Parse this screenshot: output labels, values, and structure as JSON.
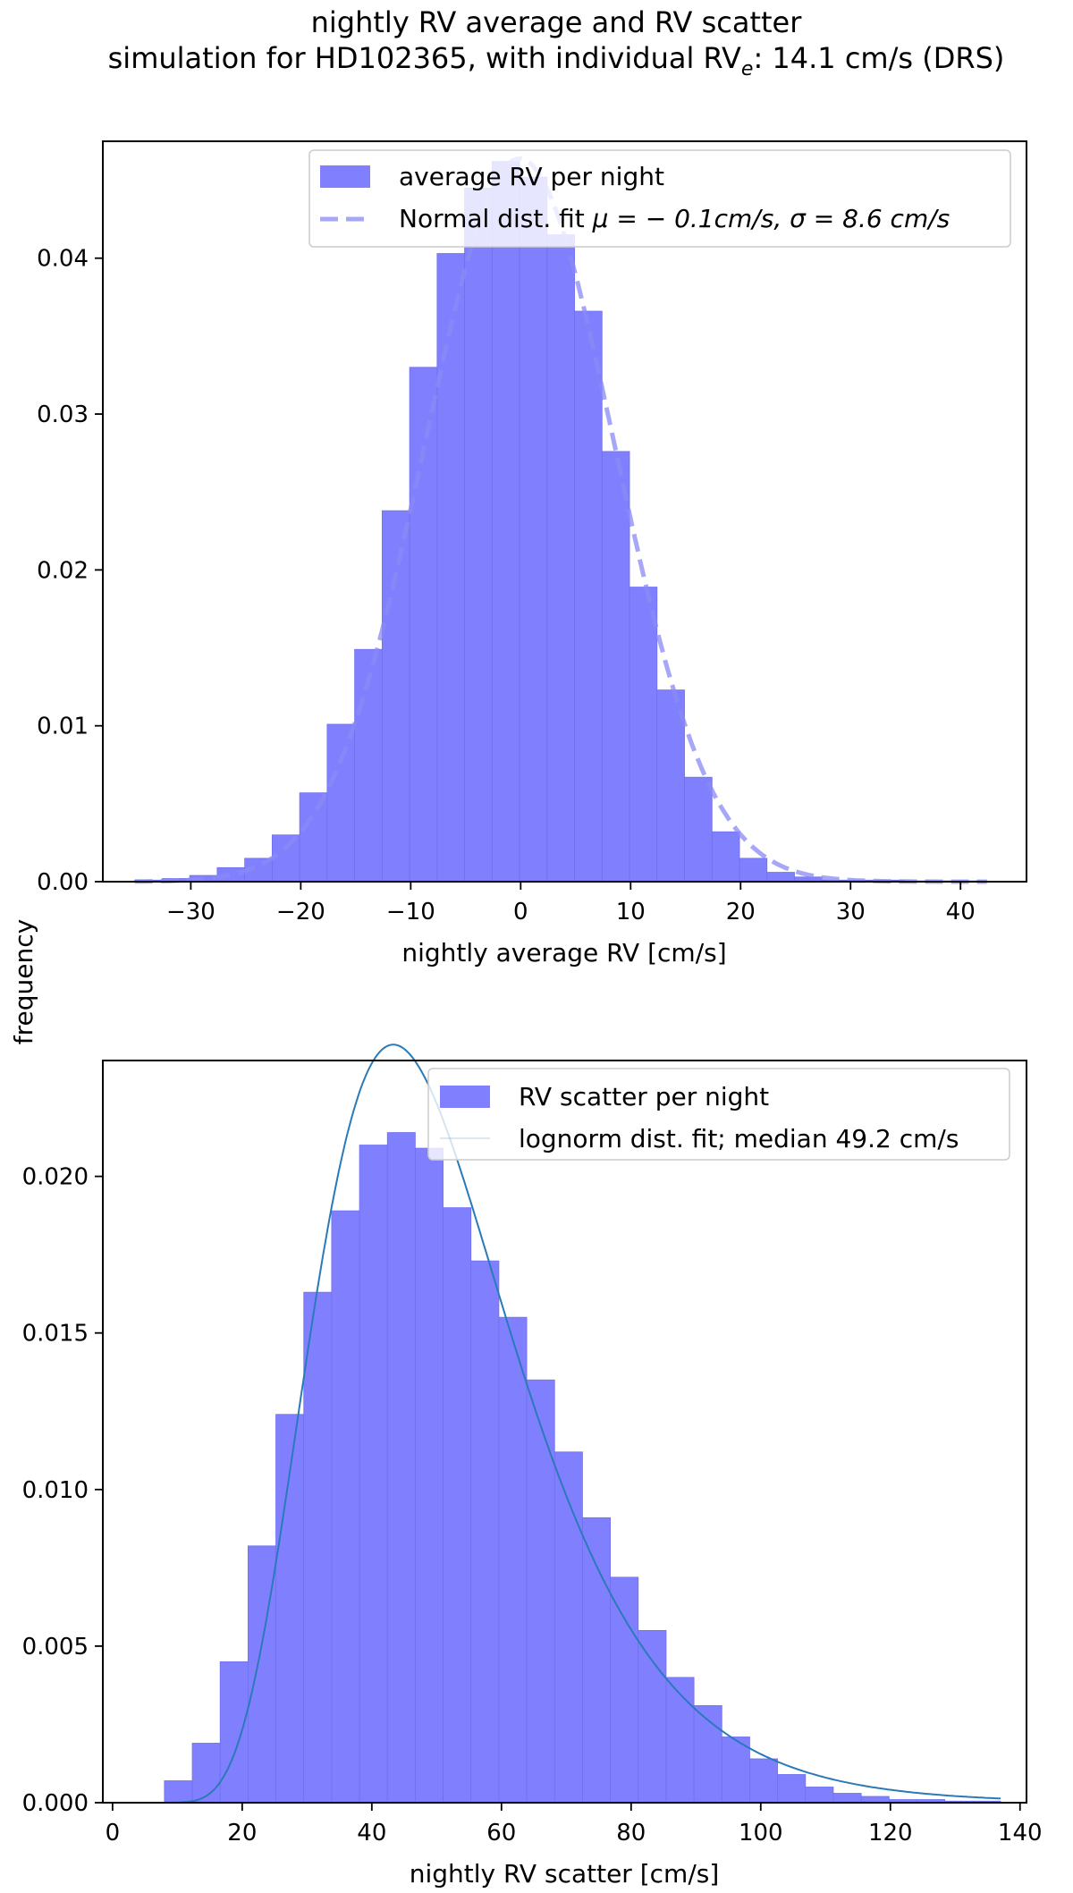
{
  "figure": {
    "title_line1": "nightly RV average and RV scatter",
    "title_line2_prefix": "simulation for HD102365, with individual RV",
    "title_line2_sub": "e",
    "title_line2_suffix": ": 14.1 cm/s (DRS)",
    "shared_ylabel": "frequency",
    "bar_color": "#8080ff",
    "bar_edge_color": "#7070ee",
    "fit_color_top": "#8a8af5",
    "fit_color_bottom": "#2a7ab8"
  },
  "chart_data": [
    {
      "type": "bar",
      "id": "top",
      "title": "",
      "xlabel": "nightly average RV [cm/s]",
      "ylabel": "frequency",
      "xlim": [
        -38,
        46
      ],
      "ylim": [
        0,
        0.0475
      ],
      "xticks": [
        -30,
        -20,
        -10,
        0,
        10,
        20,
        30,
        40
      ],
      "xtick_labels": [
        "−30",
        "−20",
        "−10",
        "0",
        "10",
        "20",
        "30",
        "40"
      ],
      "yticks": [
        0.0,
        0.01,
        0.02,
        0.03,
        0.04
      ],
      "ytick_labels": [
        "0.00",
        "0.01",
        "0.02",
        "0.03",
        "0.04"
      ],
      "legend": {
        "position": "upper right",
        "entries": [
          {
            "kind": "patch",
            "label": "average RV per night"
          },
          {
            "kind": "dashed-line",
            "label_prefix": "Normal dist. fit ",
            "label_math": "μ = − 0.1cm/s,  σ = 8.6 cm/s"
          }
        ]
      },
      "bin_edges": [
        -35.1,
        -32.6,
        -30.1,
        -27.6,
        -25.1,
        -22.6,
        -20.1,
        -17.6,
        -15.1,
        -12.6,
        -10.1,
        -7.6,
        -5.1,
        -2.6,
        -0.1,
        2.4,
        4.9,
        7.4,
        9.9,
        12.4,
        14.9,
        17.4,
        19.9,
        22.4,
        24.9,
        27.4,
        29.9,
        32.4,
        34.9,
        37.4,
        39.9,
        42.4
      ],
      "values": [
        0.0001,
        0.0002,
        0.0004,
        0.0009,
        0.0015,
        0.003,
        0.0057,
        0.0101,
        0.0149,
        0.0238,
        0.033,
        0.0403,
        0.0445,
        0.0462,
        0.0452,
        0.0415,
        0.0366,
        0.0276,
        0.0189,
        0.0123,
        0.0067,
        0.0032,
        0.0015,
        0.0006,
        0.0003,
        0.0001,
        0.0001,
        0.0001,
        5e-05,
        5e-05,
        5e-05
      ],
      "fit": {
        "kind": "normal",
        "mu": -0.1,
        "sigma": 8.6,
        "style": "dashed"
      }
    },
    {
      "type": "bar",
      "id": "bottom",
      "title": "",
      "xlabel": "nightly RV scatter [cm/s]",
      "ylabel": "frequency",
      "xlim": [
        -1.5,
        141
      ],
      "ylim": [
        0,
        0.0237
      ],
      "xticks": [
        0,
        20,
        40,
        60,
        80,
        100,
        120,
        140
      ],
      "xtick_labels": [
        "0",
        "20",
        "40",
        "60",
        "80",
        "100",
        "120",
        "140"
      ],
      "yticks": [
        0.0,
        0.005,
        0.01,
        0.015,
        0.02
      ],
      "ytick_labels": [
        "0.000",
        "0.005",
        "0.010",
        "0.015",
        "0.020"
      ],
      "legend": {
        "position": "upper right",
        "entries": [
          {
            "kind": "patch",
            "label": "RV scatter per night"
          },
          {
            "kind": "thin-line",
            "label": "lognorm dist. fit; median 49.2 cm/s"
          }
        ]
      },
      "bin_edges": [
        8,
        12.3,
        16.6,
        20.9,
        25.2,
        29.5,
        33.8,
        38.1,
        42.4,
        46.7,
        51,
        55.3,
        59.6,
        63.9,
        68.2,
        72.5,
        76.8,
        81.1,
        85.4,
        89.7,
        94,
        98.3,
        102.6,
        106.9,
        111.2,
        115.5,
        119.8,
        124.1,
        128.4,
        132.7,
        137
      ],
      "values": [
        0.0007,
        0.0019,
        0.0045,
        0.0082,
        0.0124,
        0.0163,
        0.0189,
        0.021,
        0.0214,
        0.0209,
        0.019,
        0.0173,
        0.0155,
        0.0135,
        0.0112,
        0.0091,
        0.0072,
        0.0055,
        0.004,
        0.0031,
        0.0021,
        0.0014,
        0.0009,
        0.0005,
        0.0003,
        0.0002,
        0.0001,
        0.0001,
        5e-05,
        5e-05
      ],
      "fit": {
        "kind": "lognormal",
        "median": 49.2,
        "s": 0.357,
        "style": "solid-thin"
      }
    }
  ]
}
